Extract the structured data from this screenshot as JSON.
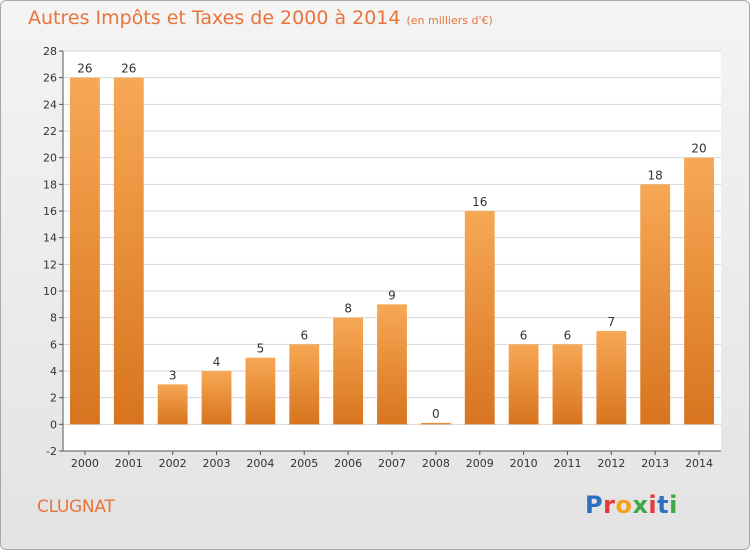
{
  "header": {
    "title": "Autres Impôts et Taxes de 2000 à 2014",
    "subtitle": "(en milliers d'€)"
  },
  "footer": {
    "place": "CLUGNAT",
    "logo": "Proxiti"
  },
  "colors": {
    "title": "#e8743b",
    "bar_light": "#f7a855",
    "bar_dark": "#d8741f",
    "grid": "#d4d4d4"
  },
  "chart_data": {
    "type": "bar",
    "title": "Autres Impôts et Taxes de 2000 à 2014",
    "subtitle": "(en milliers d'€)",
    "xlabel": "",
    "ylabel": "",
    "categories": [
      "2000",
      "2001",
      "2002",
      "2003",
      "2004",
      "2005",
      "2006",
      "2007",
      "2008",
      "2009",
      "2010",
      "2011",
      "2012",
      "2013",
      "2014"
    ],
    "values": [
      26,
      26,
      3,
      4,
      5,
      6,
      8,
      9,
      0,
      16,
      6,
      6,
      7,
      18,
      20
    ],
    "ylim": [
      -2,
      28
    ],
    "yticks": [
      -2,
      0,
      2,
      4,
      6,
      8,
      10,
      12,
      14,
      16,
      18,
      20,
      22,
      24,
      26,
      28
    ],
    "grid": true,
    "legend": "none"
  }
}
